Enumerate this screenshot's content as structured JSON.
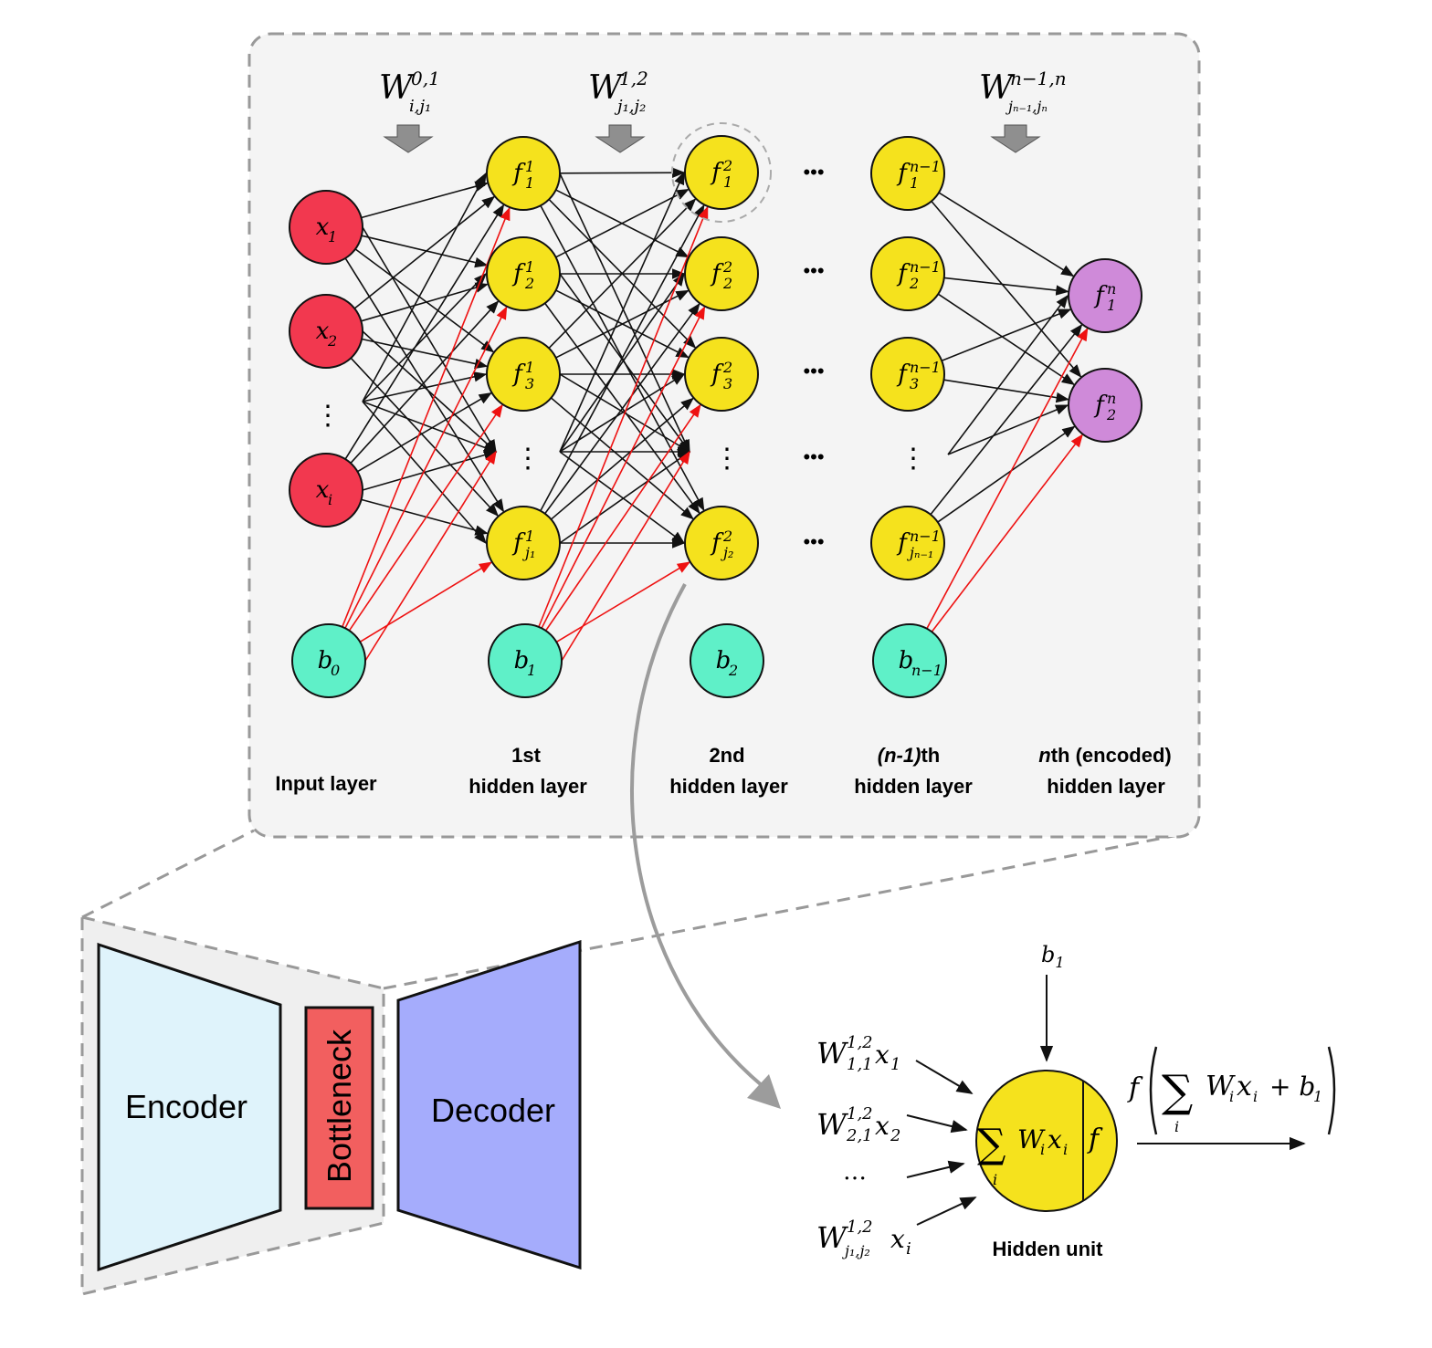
{
  "colors": {
    "input": "#f2384f",
    "hidden": "#f5e21d",
    "bias": "#5ff0c8",
    "output": "#cf8ad9",
    "panel": "#f4f4f4",
    "bias_edge": "#ee1111",
    "encoder": "#dff3fb",
    "bottleneck": "#f25f5f",
    "decoder": "#a5acfc"
  },
  "weights": [
    {
      "base": "W",
      "sup": "0,1",
      "sub": "i,j₁"
    },
    {
      "base": "W",
      "sup": "1,2",
      "sub": "j₁,j₂"
    },
    {
      "base": "W",
      "sup": "n−1,n",
      "sub": "jₙ₋₁,jₙ"
    }
  ],
  "nodes": {
    "input": [
      {
        "base": "x",
        "sub": "1"
      },
      {
        "base": "x",
        "sub": "2"
      },
      {
        "base": "x",
        "sub": "i"
      }
    ],
    "bias": [
      {
        "base": "b",
        "sub": "0"
      },
      {
        "base": "b",
        "sub": "1"
      },
      {
        "base": "b",
        "sub": "2"
      },
      {
        "base": "b",
        "sub": "n−1"
      }
    ],
    "h1": [
      {
        "base": "f",
        "sup": "1",
        "sub": "1"
      },
      {
        "base": "f",
        "sup": "1",
        "sub": "2"
      },
      {
        "base": "f",
        "sup": "1",
        "sub": "3"
      },
      {
        "base": "f",
        "sup": "1",
        "sub": "j₁"
      }
    ],
    "h2": [
      {
        "base": "f",
        "sup": "2",
        "sub": "1"
      },
      {
        "base": "f",
        "sup": "2",
        "sub": "2"
      },
      {
        "base": "f",
        "sup": "2",
        "sub": "3"
      },
      {
        "base": "f",
        "sup": "2",
        "sub": "j₂"
      }
    ],
    "hn1": [
      {
        "base": "f",
        "sup": "n−1",
        "sub": "1"
      },
      {
        "base": "f",
        "sup": "n−1",
        "sub": "2"
      },
      {
        "base": "f",
        "sup": "n−1",
        "sub": "3"
      },
      {
        "base": "f",
        "sup": "n−1",
        "sub": "jₙ₋₁"
      }
    ],
    "out": [
      {
        "base": "f",
        "sup": "n",
        "sub": "1"
      },
      {
        "base": "f",
        "sup": "n",
        "sub": "2"
      }
    ]
  },
  "layer_labels": {
    "input": "Input layer",
    "h1_l1": "1st",
    "h1_l2": "hidden layer",
    "h2_l1": "2nd",
    "h2_l2": "hidden layer",
    "hn1_l1_a": "(n-1)",
    "hn1_l1_b": "th",
    "hn1_l2": "hidden layer",
    "out_l1_a": "n",
    "out_l1_b": "th (encoded)",
    "out_l2": "hidden layer"
  },
  "dots": {
    "vertical": "⋮",
    "horizontal": "•••",
    "ellipsis": "…"
  },
  "autoencoder": {
    "encoder": "Encoder",
    "bottleneck": "Bottleneck",
    "decoder": "Decoder"
  },
  "hidden_unit": {
    "title": "Hidden unit",
    "bias_base": "b",
    "bias_sub": "1",
    "inputs": [
      {
        "base": "W",
        "sup": "1,2",
        "sub": "1,1",
        "x": "x",
        "xsub": "1"
      },
      {
        "base": "W",
        "sup": "1,2",
        "sub": "2,1",
        "x": "x",
        "xsub": "2"
      },
      {
        "base": "W",
        "sup": "1,2",
        "sub": "j₁,j₂",
        "x": "x",
        "xsub": "i"
      }
    ],
    "sum_symbol": "∑",
    "sum_index": "i",
    "sum_term_w": "W",
    "sum_term_wsub": "i",
    "sum_term_x": "x",
    "sum_term_xsub": "i",
    "activation": "f",
    "out_f": "f",
    "out_plus": "+ b",
    "out_plus_sub": "1"
  }
}
